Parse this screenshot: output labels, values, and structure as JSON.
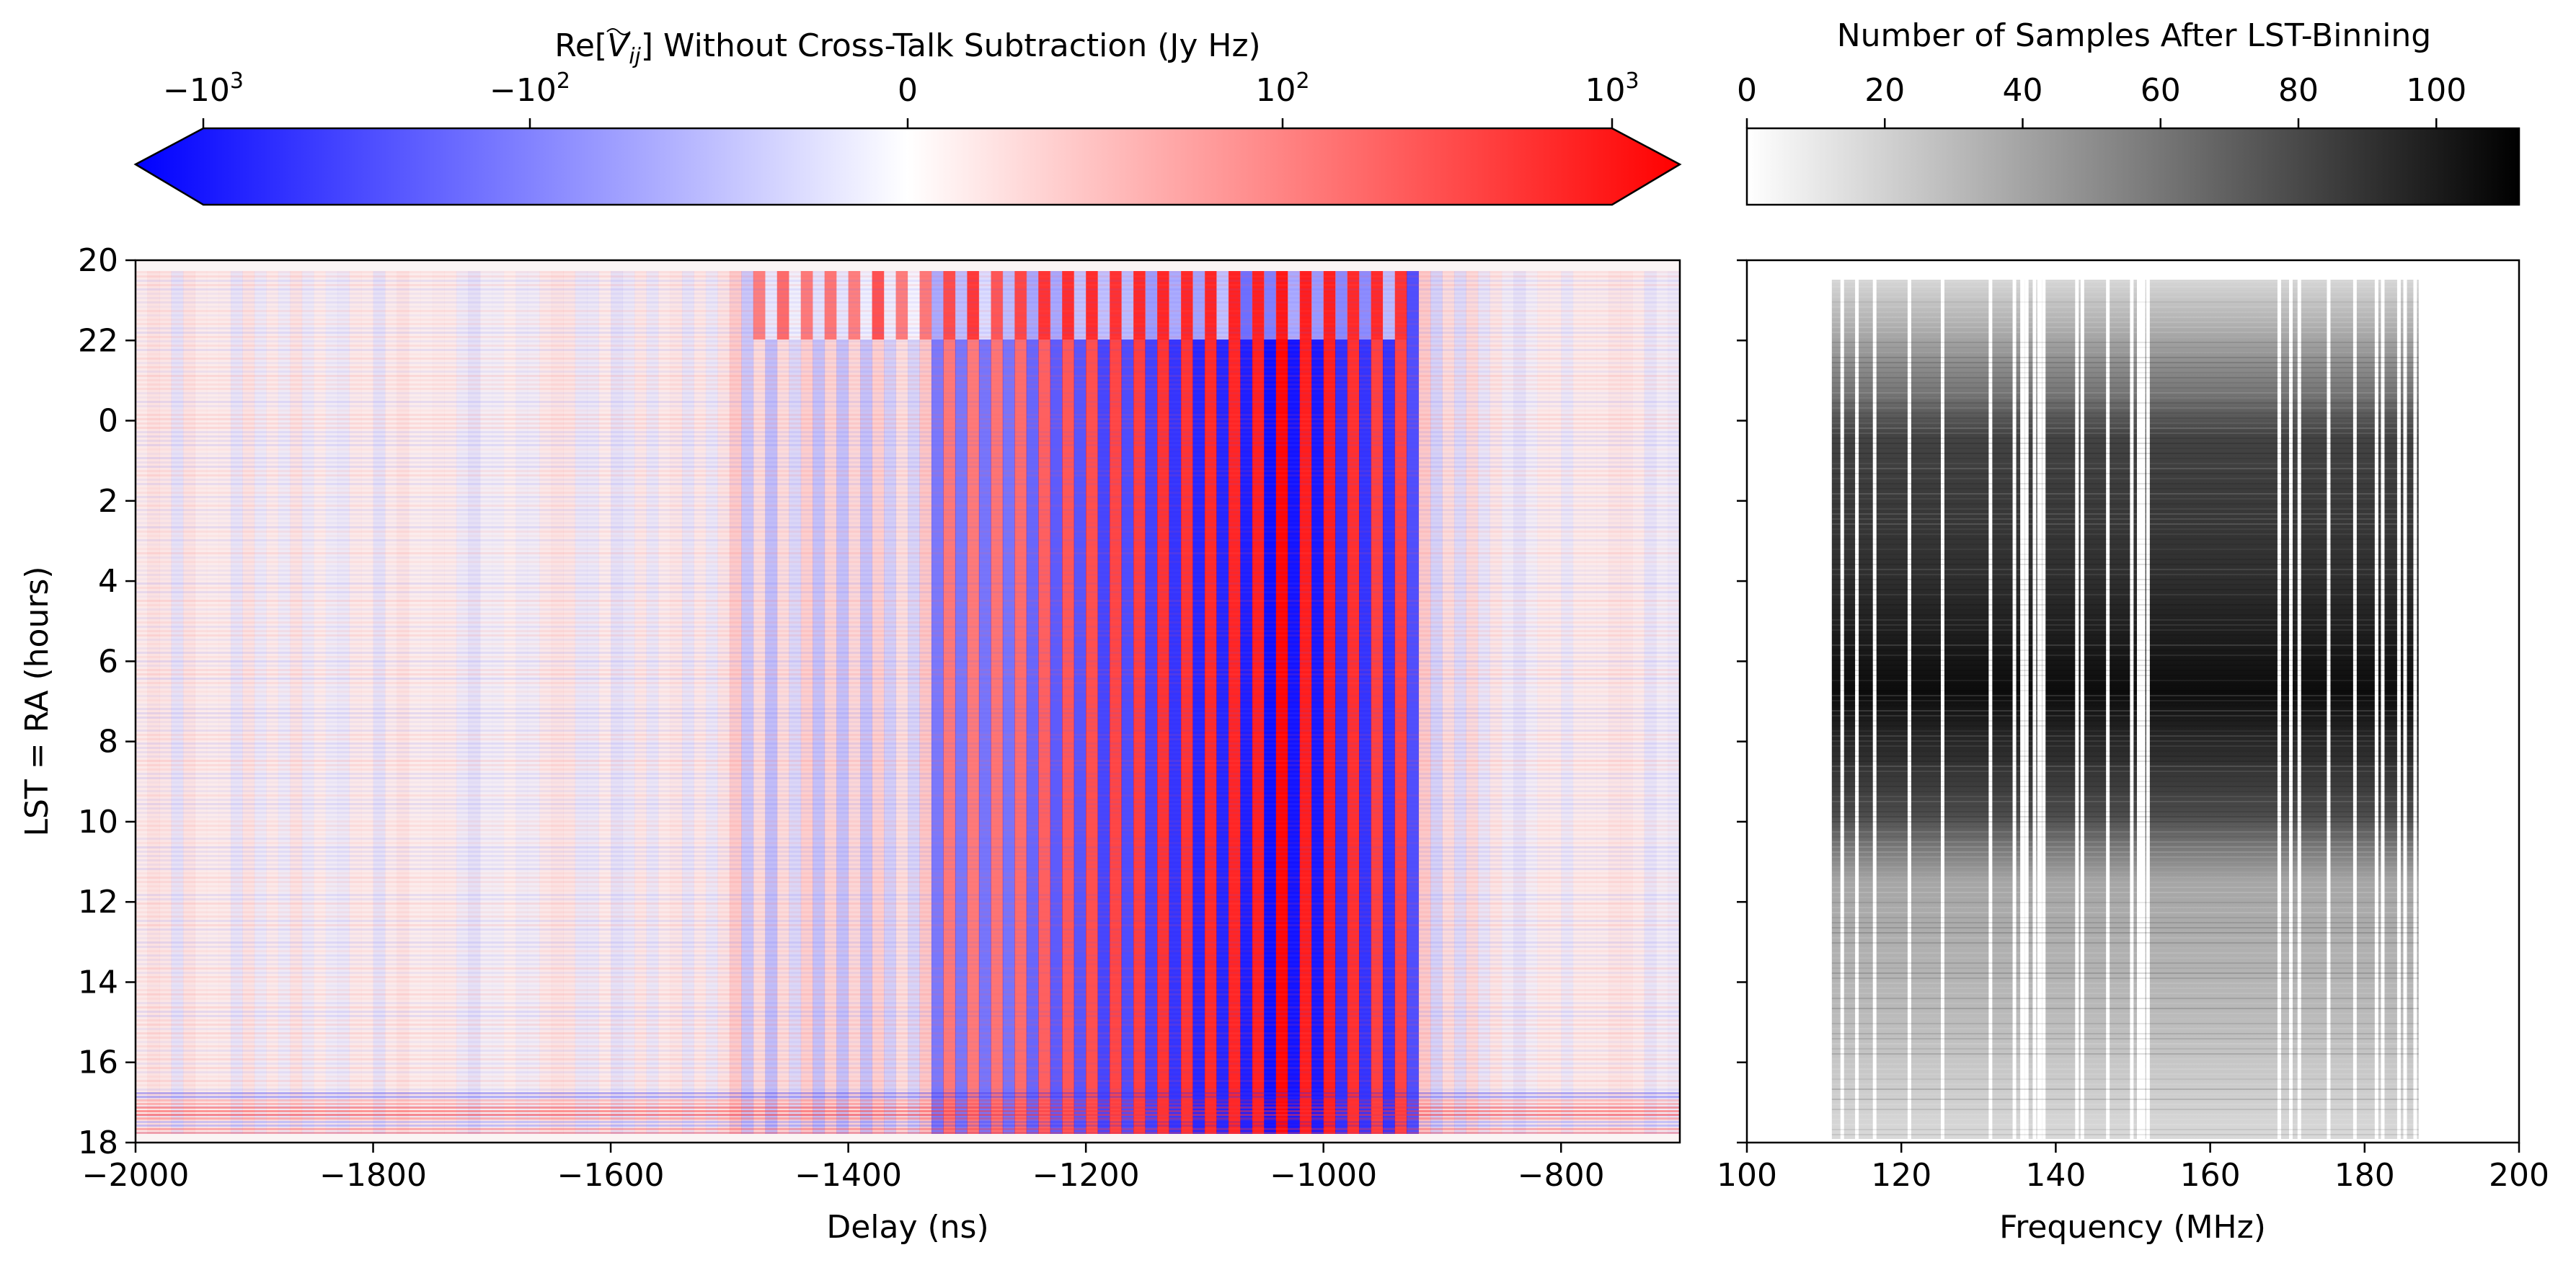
{
  "chart_data": [
    {
      "type": "heatmap",
      "title": "",
      "xlabel": "Delay (ns)",
      "ylabel": "LST = RA (hours)",
      "xlim": [
        -2000,
        -700
      ],
      "xticks": [
        "−2000",
        "−1800",
        "−1600",
        "−1400",
        "−1200",
        "−1000",
        "−800"
      ],
      "yticks": [
        "20",
        "22",
        "0",
        "2",
        "4",
        "6",
        "8",
        "10",
        "12",
        "14",
        "16",
        "18"
      ],
      "y_axis_wraps": "LST runs 20 → 24/0 → 18 hours (top to bottom)",
      "colormap": "bwr (diverging, symlog)",
      "colorbar": {
        "label_prefix": "Re[",
        "label_symbol": "V",
        "label_subscript": "ij",
        "label_suffix": "] Without Cross-Talk Subtraction (Jy Hz)",
        "ticks": [
          {
            "base": "−10",
            "exp": "3"
          },
          {
            "base": "−10",
            "exp": "2"
          },
          {
            "base": "0",
            "exp": ""
          },
          {
            "base": "10",
            "exp": "2"
          },
          {
            "base": "10",
            "exp": "3"
          }
        ],
        "range": [
          -1000,
          1000
        ],
        "extend": "both",
        "colors": {
          "low": "#0000ff",
          "mid": "#ffffff",
          "high": "#ff0000"
        }
      },
      "features": {
        "strong_stripe_delay_range": [
          -1330,
          -930
        ],
        "stripe_period_ns": 20,
        "faint_stripe_range": [
          -1500,
          -880
        ],
        "background": "near-zero noise, light red/blue"
      }
    },
    {
      "type": "heatmap",
      "title": "",
      "xlabel": "Frequency (MHz)",
      "ylabel": "",
      "xlim": [
        100,
        200
      ],
      "xticks": [
        "100",
        "120",
        "140",
        "160",
        "180",
        "200"
      ],
      "colormap": "grey (white → black)",
      "colorbar": {
        "label": "Number of Samples After LST-Binning",
        "ticks": [
          "0",
          "20",
          "40",
          "60",
          "80",
          "100"
        ],
        "range": [
          0,
          112
        ],
        "colors": {
          "low": "#ffffff",
          "high": "#000000"
        }
      },
      "features": {
        "data_freq_range_mhz": [
          111,
          187
        ],
        "max_density_lst_hours": [
          6,
          8
        ],
        "flagged_channels_mhz": [
          112.3,
          114.2,
          116.5,
          121,
          125.3,
          131.5,
          134.6,
          136.2,
          137.2,
          138.4,
          142.7,
          143.4,
          146.7,
          149.8,
          150.7,
          151.9,
          168.9,
          170.4,
          171.5,
          175.3,
          178.7,
          181.5,
          182.3,
          184.4,
          185.2,
          186.5
        ]
      }
    }
  ]
}
